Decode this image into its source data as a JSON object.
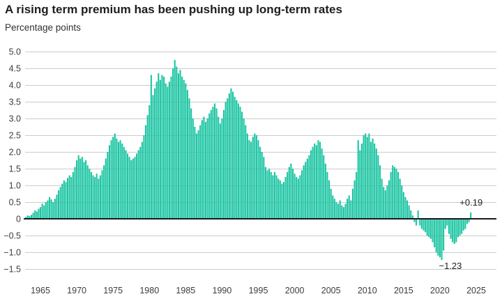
{
  "title": "A rising term premium has been pushing up long-term rates",
  "subtitle": "Percentage points",
  "colors": {
    "bar": "#1dc5a3",
    "grid": "#cccccc",
    "zero_axis": "#1a1a1a",
    "tick_text": "#3c3c3c",
    "annotation_text": "#1e1e1e",
    "background": "#ffffff"
  },
  "annotations": {
    "latest_label": "+0.19",
    "min_label": "−1.23"
  },
  "chart_data": {
    "type": "bar",
    "title": "A rising term premium has been pushing up long-term rates",
    "ylabel": "Percentage points",
    "xlabel": "",
    "grid": true,
    "legend": "none",
    "ylim": [
      -1.5,
      5.0
    ],
    "yticks": [
      5.0,
      4.5,
      4.0,
      3.5,
      3.0,
      2.5,
      2.0,
      1.5,
      1.0,
      0.5,
      0,
      -0.5,
      -1.0,
      -1.5
    ],
    "ytick_labels": [
      "5.0",
      "4.5",
      "4.0",
      "3.5",
      "3.0",
      "2.5",
      "2.0",
      "1.5",
      "1.0",
      "0.5",
      "0",
      "−0.5",
      "−1.0",
      "−1.5"
    ],
    "xticks": [
      1965,
      1970,
      1975,
      1980,
      1985,
      1990,
      1995,
      2000,
      2005,
      2010,
      2015,
      2020,
      2025
    ],
    "frequency": "quarterly",
    "start_year": 1963,
    "values": [
      0.06,
      0.1,
      0.08,
      0.12,
      0.18,
      0.25,
      0.22,
      0.3,
      0.35,
      0.45,
      0.4,
      0.5,
      0.55,
      0.65,
      0.58,
      0.5,
      0.6,
      0.72,
      0.85,
      0.95,
      1.05,
      1.15,
      1.1,
      1.22,
      1.3,
      1.25,
      1.4,
      1.55,
      1.75,
      1.9,
      1.8,
      1.85,
      1.7,
      1.75,
      1.6,
      1.5,
      1.4,
      1.3,
      1.25,
      1.35,
      1.2,
      1.3,
      1.45,
      1.6,
      1.8,
      2.0,
      2.2,
      2.35,
      2.45,
      2.55,
      2.4,
      2.3,
      2.35,
      2.25,
      2.15,
      2.05,
      1.95,
      1.85,
      1.75,
      1.8,
      1.85,
      1.95,
      2.05,
      2.15,
      2.3,
      2.5,
      2.8,
      3.1,
      3.4,
      4.3,
      3.7,
      3.9,
      4.1,
      4.35,
      4.15,
      4.3,
      4.25,
      4.05,
      3.95,
      4.1,
      4.25,
      4.5,
      4.75,
      4.55,
      4.35,
      4.45,
      4.25,
      4.15,
      4.05,
      3.85,
      3.6,
      3.3,
      3.0,
      2.75,
      2.55,
      2.65,
      2.8,
      2.95,
      3.05,
      2.9,
      3.0,
      3.15,
      3.25,
      3.35,
      3.45,
      3.3,
      3.05,
      2.85,
      3.0,
      3.25,
      3.5,
      3.6,
      3.75,
      3.9,
      3.8,
      3.65,
      3.55,
      3.45,
      3.35,
      3.2,
      3.0,
      2.8,
      2.55,
      2.35,
      2.3,
      2.45,
      2.55,
      2.5,
      2.35,
      2.15,
      2.0,
      1.85,
      1.55,
      1.45,
      1.5,
      1.4,
      1.3,
      1.4,
      1.3,
      1.2,
      1.15,
      1.05,
      1.1,
      1.25,
      1.4,
      1.55,
      1.65,
      1.5,
      1.35,
      1.25,
      1.2,
      1.3,
      1.45,
      1.6,
      1.7,
      1.8,
      1.9,
      2.05,
      2.15,
      2.25,
      2.2,
      2.35,
      2.3,
      2.1,
      1.9,
      1.65,
      1.4,
      1.15,
      0.9,
      0.7,
      0.6,
      0.5,
      0.45,
      0.55,
      0.4,
      0.35,
      0.45,
      0.6,
      0.7,
      0.55,
      0.9,
      1.15,
      1.4,
      2.35,
      2.05,
      2.25,
      2.5,
      2.55,
      2.45,
      2.55,
      2.3,
      2.4,
      2.25,
      2.1,
      1.9,
      1.6,
      1.2,
      0.95,
      0.85,
      1.0,
      1.15,
      1.4,
      1.6,
      1.55,
      1.5,
      1.4,
      1.2,
      1.0,
      0.8,
      0.65,
      0.55,
      0.4,
      0.25,
      0.1,
      -0.1,
      -0.2,
      0.25,
      -0.2,
      -0.3,
      -0.35,
      -0.4,
      -0.5,
      -0.55,
      -0.6,
      -0.7,
      -0.85,
      -1.0,
      -1.1,
      -1.15,
      -1.23,
      -0.95,
      -0.3,
      -0.2,
      -0.45,
      -0.6,
      -0.7,
      -0.75,
      -0.7,
      -0.55,
      -0.5,
      -0.45,
      -0.35,
      -0.3,
      -0.15,
      -0.1,
      0.19
    ],
    "annotations": [
      {
        "id": "latest",
        "label": "+0.19",
        "attach": "last"
      },
      {
        "id": "min",
        "label": "−1.23",
        "attach": "min"
      }
    ]
  }
}
